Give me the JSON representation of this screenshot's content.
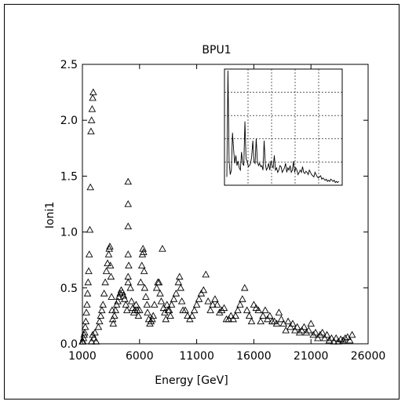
{
  "chart_data": {
    "type": "scatter",
    "title": "BPU1",
    "xlabel": "Energy [GeV]",
    "ylabel": "Ioni1",
    "xlim": [
      1000,
      26000
    ],
    "ylim": [
      0,
      2.5
    ],
    "xticks": [
      "1000",
      "6000",
      "11000",
      "16000",
      "21000",
      "26000"
    ],
    "yticks": [
      "0.0",
      "0.5",
      "1.0",
      "1.5",
      "2.0",
      "2.5"
    ],
    "marker": "triangle-open",
    "grid": false,
    "points": [
      [
        1000,
        0.02
      ],
      [
        1050,
        0.02
      ],
      [
        1100,
        0.05
      ],
      [
        1150,
        0.08
      ],
      [
        1200,
        0.1
      ],
      [
        1250,
        0.15
      ],
      [
        1300,
        0.2
      ],
      [
        1350,
        0.28
      ],
      [
        1400,
        0.35
      ],
      [
        1450,
        0.45
      ],
      [
        1500,
        0.55
      ],
      [
        1550,
        0.65
      ],
      [
        1600,
        0.8
      ],
      [
        1650,
        1.02
      ],
      [
        1700,
        1.4
      ],
      [
        1750,
        1.9
      ],
      [
        1800,
        2.0
      ],
      [
        1850,
        2.1
      ],
      [
        1900,
        2.2
      ],
      [
        1950,
        2.25
      ],
      [
        1800,
        0.02
      ],
      [
        1900,
        0.08
      ],
      [
        2000,
        0.05
      ],
      [
        2100,
        0.1
      ],
      [
        2200,
        0.02
      ],
      [
        2400,
        0.15
      ],
      [
        2500,
        0.2
      ],
      [
        2600,
        0.25
      ],
      [
        2700,
        0.3
      ],
      [
        2800,
        0.35
      ],
      [
        2900,
        0.45
      ],
      [
        3000,
        0.55
      ],
      [
        3100,
        0.65
      ],
      [
        3200,
        0.72
      ],
      [
        3300,
        0.8
      ],
      [
        3350,
        0.85
      ],
      [
        3400,
        0.87
      ],
      [
        3450,
        0.7
      ],
      [
        3500,
        0.6
      ],
      [
        3550,
        0.42
      ],
      [
        3600,
        0.3
      ],
      [
        3650,
        0.22
      ],
      [
        3700,
        0.18
      ],
      [
        3800,
        0.25
      ],
      [
        3900,
        0.3
      ],
      [
        4000,
        0.35
      ],
      [
        4100,
        0.38
      ],
      [
        4200,
        0.42
      ],
      [
        4300,
        0.45
      ],
      [
        4400,
        0.48
      ],
      [
        4500,
        0.46
      ],
      [
        4600,
        0.43
      ],
      [
        4700,
        0.4
      ],
      [
        4800,
        0.35
      ],
      [
        4900,
        0.3
      ],
      [
        5000,
        0.8
      ],
      [
        5000,
        1.05
      ],
      [
        5000,
        1.25
      ],
      [
        5000,
        1.45
      ],
      [
        5000,
        0.6
      ],
      [
        5000,
        0.55
      ],
      [
        5050,
        0.7
      ],
      [
        5200,
        0.5
      ],
      [
        5300,
        0.38
      ],
      [
        5400,
        0.32
      ],
      [
        5500,
        0.28
      ],
      [
        5600,
        0.3
      ],
      [
        5700,
        0.35
      ],
      [
        5800,
        0.3
      ],
      [
        5900,
        0.25
      ],
      [
        6000,
        0.3
      ],
      [
        6100,
        0.55
      ],
      [
        6200,
        0.7
      ],
      [
        6250,
        0.8
      ],
      [
        6300,
        0.85
      ],
      [
        6350,
        0.82
      ],
      [
        6400,
        0.65
      ],
      [
        6450,
        0.5
      ],
      [
        6550,
        0.42
      ],
      [
        6650,
        0.35
      ],
      [
        6700,
        0.28
      ],
      [
        6800,
        0.22
      ],
      [
        6900,
        0.18
      ],
      [
        7000,
        0.2
      ],
      [
        7100,
        0.22
      ],
      [
        7200,
        0.25
      ],
      [
        7300,
        0.35
      ],
      [
        7500,
        0.5
      ],
      [
        7600,
        0.55
      ],
      [
        7700,
        0.55
      ],
      [
        7800,
        0.45
      ],
      [
        7900,
        0.38
      ],
      [
        8000,
        0.85
      ],
      [
        8100,
        0.32
      ],
      [
        8200,
        0.28
      ],
      [
        8300,
        0.22
      ],
      [
        8400,
        0.35
      ],
      [
        8500,
        0.3
      ],
      [
        8600,
        0.3
      ],
      [
        8700,
        0.25
      ],
      [
        8800,
        0.35
      ],
      [
        9000,
        0.4
      ],
      [
        9200,
        0.45
      ],
      [
        9400,
        0.55
      ],
      [
        9500,
        0.6
      ],
      [
        9600,
        0.5
      ],
      [
        9700,
        0.38
      ],
      [
        9800,
        0.3
      ],
      [
        10000,
        0.3
      ],
      [
        10200,
        0.25
      ],
      [
        10400,
        0.22
      ],
      [
        10600,
        0.25
      ],
      [
        10800,
        0.3
      ],
      [
        11000,
        0.35
      ],
      [
        11200,
        0.4
      ],
      [
        11400,
        0.45
      ],
      [
        11600,
        0.48
      ],
      [
        11800,
        0.62
      ],
      [
        12000,
        0.38
      ],
      [
        12200,
        0.3
      ],
      [
        12400,
        0.35
      ],
      [
        12600,
        0.4
      ],
      [
        12800,
        0.35
      ],
      [
        13000,
        0.28
      ],
      [
        13200,
        0.3
      ],
      [
        13400,
        0.32
      ],
      [
        13600,
        0.22
      ],
      [
        13800,
        0.22
      ],
      [
        14000,
        0.25
      ],
      [
        14200,
        0.22
      ],
      [
        14400,
        0.25
      ],
      [
        14600,
        0.3
      ],
      [
        14800,
        0.35
      ],
      [
        15000,
        0.4
      ],
      [
        15200,
        0.5
      ],
      [
        15400,
        0.3
      ],
      [
        15600,
        0.25
      ],
      [
        15800,
        0.2
      ],
      [
        16000,
        0.35
      ],
      [
        16200,
        0.32
      ],
      [
        16400,
        0.3
      ],
      [
        16600,
        0.2
      ],
      [
        16800,
        0.25
      ],
      [
        17000,
        0.3
      ],
      [
        17200,
        0.22
      ],
      [
        17400,
        0.25
      ],
      [
        17600,
        0.2
      ],
      [
        17800,
        0.2
      ],
      [
        18000,
        0.18
      ],
      [
        18200,
        0.28
      ],
      [
        18400,
        0.22
      ],
      [
        18600,
        0.18
      ],
      [
        18800,
        0.12
      ],
      [
        19000,
        0.2
      ],
      [
        19200,
        0.15
      ],
      [
        19400,
        0.18
      ],
      [
        19600,
        0.12
      ],
      [
        19800,
        0.15
      ],
      [
        20000,
        0.1
      ],
      [
        20200,
        0.12
      ],
      [
        20400,
        0.15
      ],
      [
        20600,
        0.1
      ],
      [
        20800,
        0.12
      ],
      [
        21000,
        0.18
      ],
      [
        21200,
        0.08
      ],
      [
        21400,
        0.1
      ],
      [
        21600,
        0.05
      ],
      [
        21800,
        0.08
      ],
      [
        22000,
        0.1
      ],
      [
        22200,
        0.05
      ],
      [
        22400,
        0.08
      ],
      [
        22600,
        0.03
      ],
      [
        22800,
        0.05
      ],
      [
        23000,
        0.02
      ],
      [
        23200,
        0.05
      ],
      [
        23400,
        0.02
      ],
      [
        23600,
        0.04
      ],
      [
        23800,
        0.03
      ],
      [
        24000,
        0.05
      ],
      [
        24200,
        0.06
      ],
      [
        24400,
        0.03
      ],
      [
        24600,
        0.08
      ]
    ],
    "inset": {
      "xlim": [
        0,
        100
      ],
      "ylim": [
        0,
        100
      ],
      "grid": true,
      "line": [
        [
          0,
          6
        ],
        [
          1,
          100
        ],
        [
          2,
          20
        ],
        [
          3,
          8
        ],
        [
          4,
          12
        ],
        [
          5,
          45
        ],
        [
          6,
          30
        ],
        [
          7,
          18
        ],
        [
          8,
          25
        ],
        [
          9,
          16
        ],
        [
          10,
          20
        ],
        [
          11,
          14
        ],
        [
          12,
          12
        ],
        [
          13,
          28
        ],
        [
          14,
          18
        ],
        [
          15,
          16
        ],
        [
          16,
          55
        ],
        [
          17,
          22
        ],
        [
          18,
          20
        ],
        [
          19,
          15
        ],
        [
          20,
          16
        ],
        [
          21,
          18
        ],
        [
          22,
          24
        ],
        [
          23,
          38
        ],
        [
          24,
          20
        ],
        [
          25,
          18
        ],
        [
          26,
          40
        ],
        [
          27,
          20
        ],
        [
          28,
          16
        ],
        [
          29,
          18
        ],
        [
          30,
          15
        ],
        [
          31,
          16
        ],
        [
          32,
          12
        ],
        [
          33,
          38
        ],
        [
          34,
          18
        ],
        [
          35,
          12
        ],
        [
          36,
          14
        ],
        [
          37,
          18
        ],
        [
          38,
          12
        ],
        [
          39,
          20
        ],
        [
          40,
          16
        ],
        [
          41,
          14
        ],
        [
          42,
          25
        ],
        [
          43,
          12
        ],
        [
          44,
          14
        ],
        [
          45,
          10
        ],
        [
          46,
          12
        ],
        [
          47,
          16
        ],
        [
          48,
          15
        ],
        [
          49,
          10
        ],
        [
          50,
          12
        ],
        [
          51,
          14
        ],
        [
          52,
          18
        ],
        [
          53,
          10
        ],
        [
          54,
          14
        ],
        [
          55,
          12
        ],
        [
          56,
          16
        ],
        [
          57,
          10
        ],
        [
          58,
          12
        ],
        [
          59,
          20
        ],
        [
          60,
          10
        ],
        [
          61,
          14
        ],
        [
          62,
          12
        ],
        [
          63,
          8
        ],
        [
          64,
          10
        ],
        [
          65,
          12
        ],
        [
          66,
          10
        ],
        [
          67,
          15
        ],
        [
          68,
          10
        ],
        [
          69,
          9
        ],
        [
          70,
          11
        ],
        [
          71,
          10
        ],
        [
          72,
          8
        ],
        [
          73,
          12
        ],
        [
          74,
          10
        ],
        [
          75,
          8
        ],
        [
          76,
          7
        ],
        [
          77,
          6
        ],
        [
          78,
          10
        ],
        [
          79,
          8
        ],
        [
          80,
          6
        ],
        [
          81,
          5
        ],
        [
          82,
          6
        ],
        [
          83,
          7
        ],
        [
          84,
          4
        ],
        [
          85,
          5
        ],
        [
          86,
          4
        ],
        [
          87,
          3
        ],
        [
          88,
          4
        ],
        [
          89,
          2
        ],
        [
          90,
          3
        ],
        [
          91,
          2
        ],
        [
          92,
          4
        ],
        [
          93,
          3
        ],
        [
          94,
          2
        ],
        [
          95,
          3
        ],
        [
          96,
          1
        ],
        [
          97,
          2
        ],
        [
          98,
          1
        ],
        [
          99,
          2
        ]
      ]
    }
  }
}
